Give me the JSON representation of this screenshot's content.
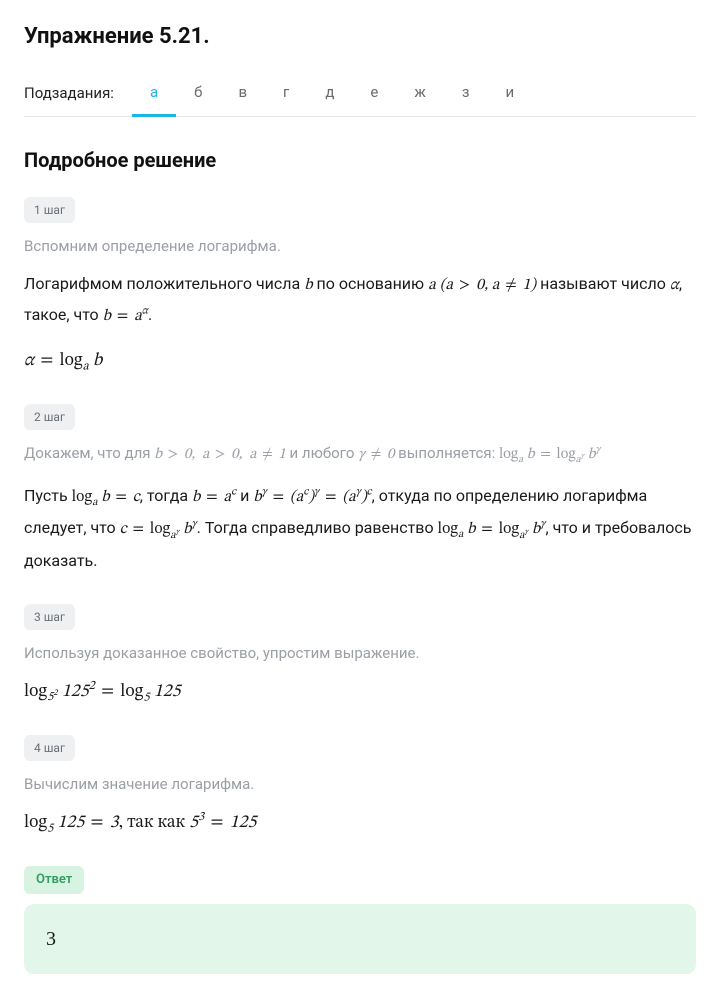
{
  "title": "Упражнение 5.21.",
  "subtasks_label": "Подзадания:",
  "tabs": [
    "а",
    "б",
    "в",
    "г",
    "д",
    "е",
    "ж",
    "з",
    "и"
  ],
  "active_tab_index": 0,
  "section_title": "Подробное решение",
  "steps": [
    {
      "badge": "1 шаг",
      "hint": "Вспомним определение логарифма.",
      "body_html": "Логарифмом положительного числа <span class='math'>b</span> по основанию <span class='math'>a</span> <span class='math'>(a<span class='op'>&nbsp;&gt;&nbsp;</span>0, a<span class='op'>&nbsp;&#8800;&nbsp;</span>1)</span> называют число <span class='math'>&alpha;</span>, такое, что <span class='math'>b<span class='op'>&nbsp;=&nbsp;</span>a<sup>&alpha;</sup></span>.",
      "formula_html": "<span class='math'>&alpha;<span class='op'>&nbsp;=&nbsp;</span><span class='rm'>log</span><sub>a</sub>&nbsp;b</span>"
    },
    {
      "badge": "2 шаг",
      "hint_html": "Докажем, что для <span class='math'>b<span class='op'>&nbsp;&gt;&nbsp;</span>0,&nbsp;&nbsp;a<span class='op'>&nbsp;&gt;&nbsp;</span>0,&nbsp;&nbsp;a<span class='op'>&nbsp;&#8800;&nbsp;</span>1</span> и любого <span class='math'>&gamma;<span class='op'>&nbsp;&#8800;&nbsp;</span>0</span> выполняется: <span class='math'><span class='rm'>log</span><sub>a</sub>&nbsp;b<span class='op'>&nbsp;=&nbsp;</span><span class='rm'>log</span><sub>a<sup>&gamma;</sup></sub>&nbsp;b<sup>&gamma;</sup></span>",
      "body_html": "Пусть <span class='math'><span class='rm'>log</span><sub>a</sub>&nbsp;b<span class='op'>&nbsp;=&nbsp;</span>c</span>, тогда <span class='math'>b<span class='op'>&nbsp;=&nbsp;</span>a<sup>c</sup></span> и <span class='math'>b<sup>&gamma;</sup><span class='op'>&nbsp;=&nbsp;</span>(a<sup>c</sup>)<sup>&gamma;</sup><span class='op'>&nbsp;=&nbsp;</span>(a<sup>&gamma;</sup>)<sup>c</sup></span>, откуда по определению логарифма следует, что <span class='math'>c<span class='op'>&nbsp;=&nbsp;</span><span class='rm'>log</span><sub>a<sup>&gamma;</sup></sub>&nbsp;b<sup>&gamma;</sup></span>. Тогда справедливо равенство <span class='math'><span class='rm'>log</span><sub>a</sub>&nbsp;b<span class='op'>&nbsp;=&nbsp;</span><span class='rm'>log</span><sub>a<sup>&gamma;</sup></sub>&nbsp;b<sup>&gamma;</sup></span>, что и требовалось доказать."
    },
    {
      "badge": "3 шаг",
      "hint": "Используя доказанное свойство, упростим выражение.",
      "formula_html": "<span class='math'><span class='rm'>log</span><sub>5<sup>2</sup></sub>&nbsp;125<sup>2</sup><span class='op'>&nbsp;=&nbsp;</span><span class='rm'>log</span><sub>5</sub>&nbsp;125</span>"
    },
    {
      "badge": "4 шаг",
      "hint": "Вычислим значение логарифма.",
      "formula_html": "<span class='math'><span class='rm'>log</span><sub>5</sub>&nbsp;125<span class='op'>&nbsp;=&nbsp;</span>3</span>, так как <span class='math'>5<sup>3</sup><span class='op'>&nbsp;=&nbsp;</span>125</span>"
    }
  ],
  "answer_label": "Ответ",
  "answer_value": "3",
  "colors": {
    "accent": "#1ab6e6",
    "badge_bg": "#eef0f2",
    "badge_text": "#6b6f76",
    "hint_text": "#9a9ea6",
    "answer_badge_bg": "#d9f3e3",
    "answer_badge_text": "#2f9e5f",
    "answer_box_bg": "#e3f6ea",
    "border": "#e5e7eb",
    "text": "#1a1a1a"
  },
  "typography": {
    "title_fontsize": 22,
    "section_fontsize": 20,
    "body_fontsize": 16,
    "formula_fontsize": 18,
    "badge_fontsize": 12
  }
}
